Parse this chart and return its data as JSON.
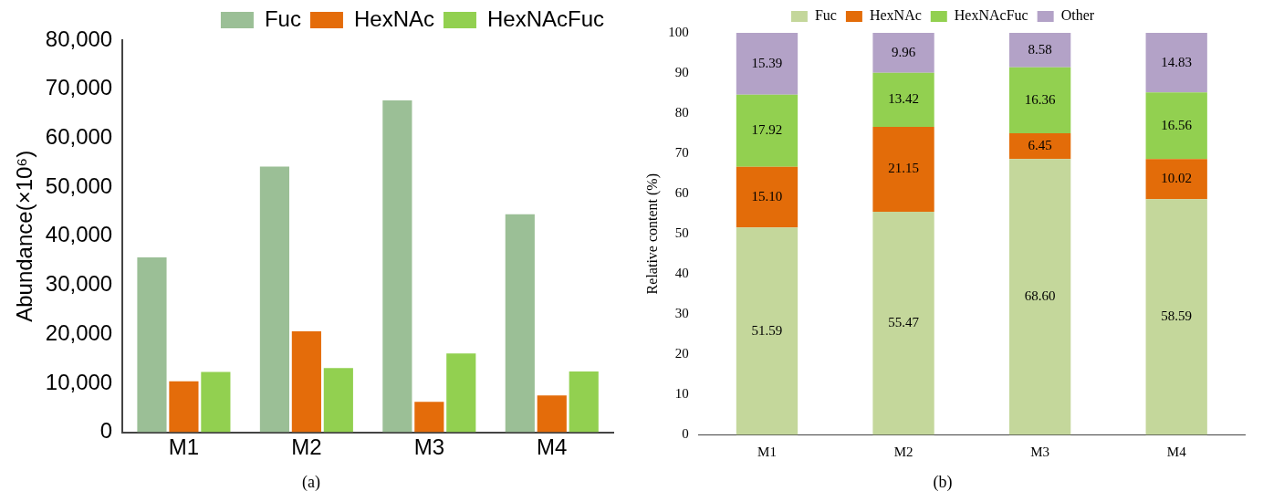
{
  "chart_data": [
    {
      "type": "bar",
      "title": "(a)",
      "ylabel": "Abundance(×10⁶)",
      "categories": [
        "M1",
        "M2",
        "M3",
        "M4"
      ],
      "series": [
        {
          "name": "Fuc",
          "color": "#9bbf96",
          "values": [
            35700,
            54200,
            67700,
            44500
          ]
        },
        {
          "name": "HexNAc",
          "color": "#e46c0a",
          "values": [
            10400,
            20600,
            6200,
            7500
          ]
        },
        {
          "name": "HexNAcFuc",
          "color": "#92d050",
          "values": [
            12300,
            13100,
            16100,
            12400
          ]
        }
      ],
      "ylim": [
        0,
        80000
      ],
      "yticks": [
        0,
        {
          "value": 10000,
          "label": "10,000"
        },
        {
          "value": 20000,
          "label": "20,000"
        },
        {
          "value": 30000,
          "label": "30,000"
        },
        {
          "value": 40000,
          "label": "40,000"
        },
        {
          "value": 50000,
          "label": "50,000"
        },
        {
          "value": 60000,
          "label": "60,000"
        },
        {
          "value": 70000,
          "label": "70,000"
        },
        {
          "value": 80000,
          "label": "80,000"
        }
      ],
      "grid": false,
      "legend": "top right"
    },
    {
      "type": "bar",
      "title": "(b)",
      "ylabel": "Relative content (%)",
      "categories": [
        "M1",
        "M2",
        "M3",
        "M4"
      ],
      "stacked": true,
      "series": [
        {
          "name": "Fuc",
          "color": "#c4d79b",
          "values": [
            51.59,
            55.47,
            68.6,
            58.59
          ],
          "value_labels": [
            "51.59",
            "55.47",
            "68.60",
            "58.59"
          ]
        },
        {
          "name": "HexNAc",
          "color": "#e36c09",
          "values": [
            15.1,
            21.15,
            6.45,
            10.02
          ],
          "value_labels": [
            "15.10",
            "21.15",
            "6.45",
            "10.02"
          ]
        },
        {
          "name": "HexNAcFuc",
          "color": "#92d050",
          "values": [
            17.92,
            13.42,
            16.36,
            16.56
          ],
          "value_labels": [
            "17.92",
            "13.42",
            "16.36",
            "16.56"
          ]
        },
        {
          "name": "Other",
          "color": "#b3a2c7",
          "values": [
            15.39,
            9.96,
            8.58,
            14.83
          ],
          "value_labels": [
            "15.39",
            "9.96",
            "8.58",
            "14.83"
          ]
        }
      ],
      "ylim": [
        0,
        100
      ],
      "yticks": [
        0,
        10,
        20,
        30,
        40,
        50,
        60,
        70,
        80,
        90,
        100
      ],
      "grid": false,
      "legend": "top"
    }
  ]
}
